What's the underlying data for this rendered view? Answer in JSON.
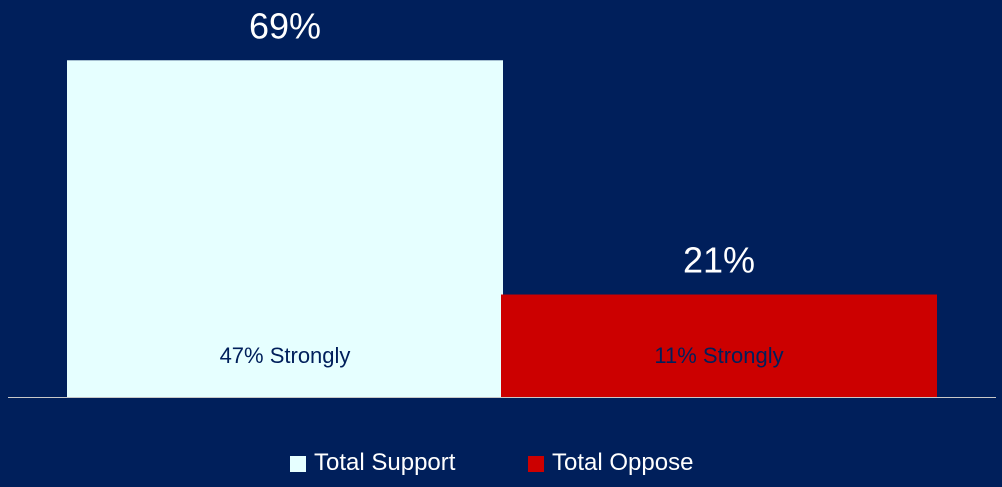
{
  "colors": {
    "background": "#001f5b",
    "support": "#e6ffff",
    "oppose": "#cc0000",
    "axis": "#c8c8c8",
    "label_text": "#ffffff",
    "inner_text": "#001f5b"
  },
  "chart_data": {
    "type": "bar",
    "categories": [
      "Total Support",
      "Total Oppose"
    ],
    "values": [
      69,
      21
    ],
    "value_labels": [
      "69%",
      "21%"
    ],
    "inner_labels": [
      "47% Strongly",
      "11% Strongly"
    ],
    "series": [
      {
        "name": "Total Support",
        "values": [
          69,
          null
        ],
        "color": "#e6ffff"
      },
      {
        "name": "Total Oppose",
        "values": [
          null,
          21
        ],
        "color": "#cc0000"
      }
    ],
    "ylim": [
      0,
      75
    ],
    "grid": false,
    "legend": {
      "position": "bottom",
      "entries": [
        "Total Support",
        "Total Oppose"
      ]
    }
  }
}
